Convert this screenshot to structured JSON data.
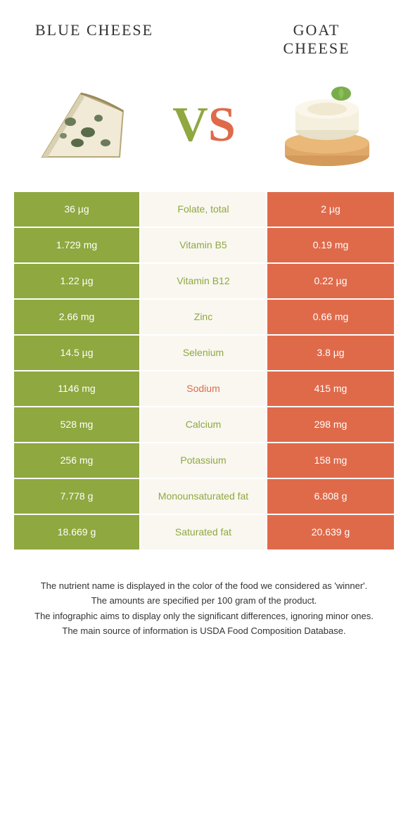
{
  "colors": {
    "green": "#8fa83f",
    "orange": "#df6a4a",
    "mid_bg": "#f9f7f0",
    "text": "#333333"
  },
  "header": {
    "left_title": "BLUE CHEESE",
    "right_title_line1": "GOAT",
    "right_title_line2": "CHEESE"
  },
  "vs": {
    "v": "V",
    "s": "S"
  },
  "rows": [
    {
      "left": "36 µg",
      "mid": "Folate, total",
      "right": "2 µg",
      "winner": "left"
    },
    {
      "left": "1.729 mg",
      "mid": "Vitamin B5",
      "right": "0.19 mg",
      "winner": "left"
    },
    {
      "left": "1.22 µg",
      "mid": "Vitamin B12",
      "right": "0.22 µg",
      "winner": "left"
    },
    {
      "left": "2.66 mg",
      "mid": "Zinc",
      "right": "0.66 mg",
      "winner": "left"
    },
    {
      "left": "14.5 µg",
      "mid": "Selenium",
      "right": "3.8 µg",
      "winner": "left"
    },
    {
      "left": "1146 mg",
      "mid": "Sodium",
      "right": "415 mg",
      "winner": "right"
    },
    {
      "left": "528 mg",
      "mid": "Calcium",
      "right": "298 mg",
      "winner": "left"
    },
    {
      "left": "256 mg",
      "mid": "Potassium",
      "right": "158 mg",
      "winner": "left"
    },
    {
      "left": "7.778 g",
      "mid": "Monounsaturated fat",
      "right": "6.808 g",
      "winner": "left"
    },
    {
      "left": "18.669 g",
      "mid": "Saturated fat",
      "right": "20.639 g",
      "winner": "left"
    }
  ],
  "footer": {
    "line1": "The nutrient name is displayed in the color of the food we considered as 'winner'.",
    "line2": "The amounts are specified per 100 gram of the product.",
    "line3": "The infographic aims to display only the significant differences, ignoring minor ones.",
    "line4": "The main source of information is USDA Food Composition Database."
  }
}
